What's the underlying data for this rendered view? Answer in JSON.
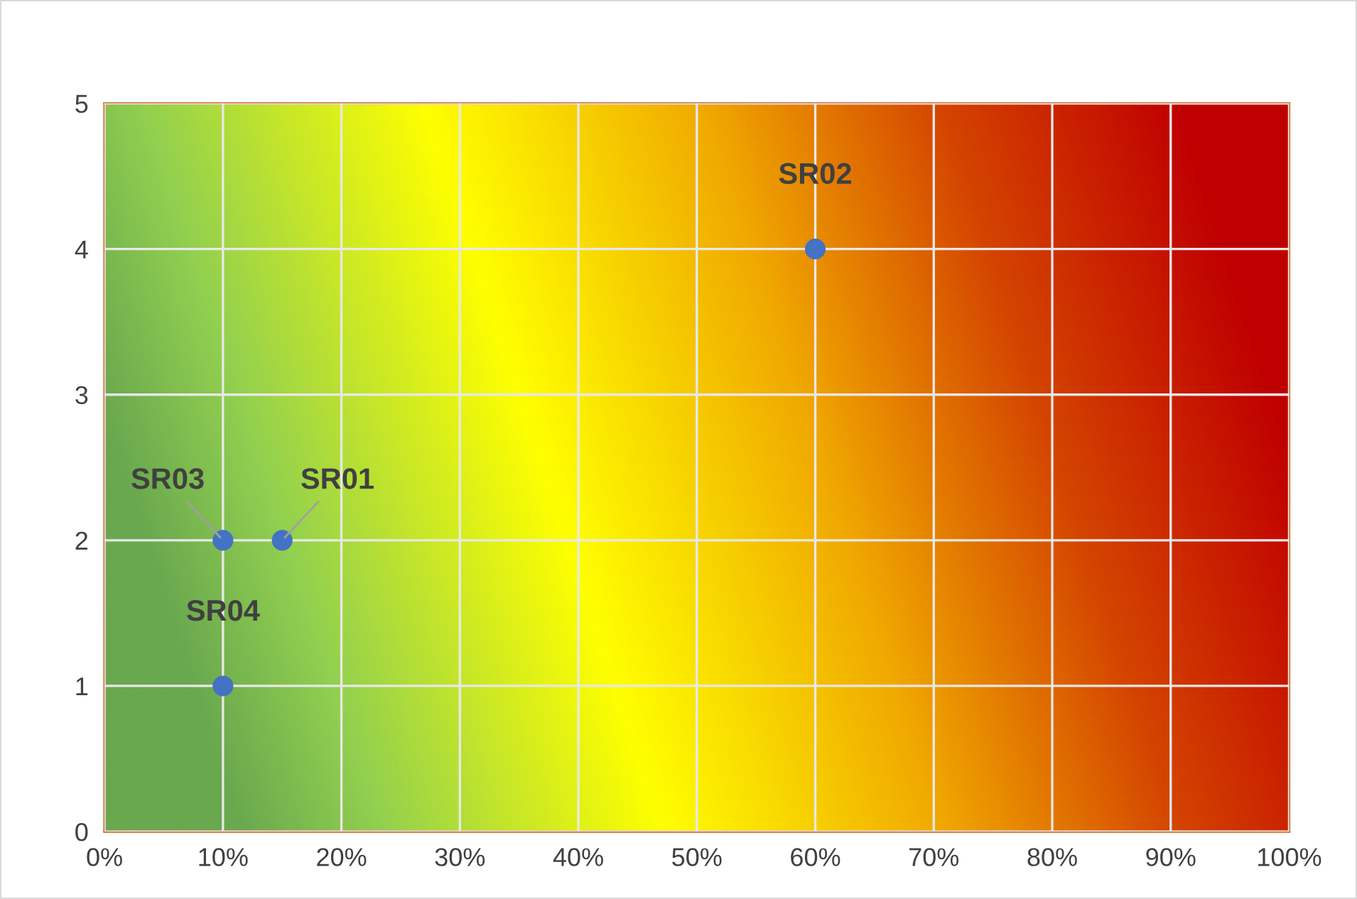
{
  "chart_data": {
    "type": "scatter",
    "x": [
      15,
      60,
      10,
      10
    ],
    "values": [
      2,
      4,
      2,
      1
    ],
    "color": "#4472c4",
    "marker": "circle",
    "xlim": [
      0,
      100
    ],
    "xticks": [
      {
        "value": 0,
        "label": "0%"
      },
      {
        "value": 10,
        "label": "10%"
      },
      {
        "value": 20,
        "label": "20%"
      },
      {
        "value": 30,
        "label": "30%"
      },
      {
        "value": 40,
        "label": "40%"
      },
      {
        "value": 50,
        "label": "50%"
      },
      {
        "value": 60,
        "label": "60%"
      },
      {
        "value": 70,
        "label": "70%"
      },
      {
        "value": 80,
        "label": "80%"
      },
      {
        "value": 90,
        "label": "90%"
      },
      {
        "value": 100,
        "label": "100%"
      }
    ],
    "ylim": [
      0,
      5
    ],
    "yticks": [
      0,
      1,
      2,
      3,
      4,
      5
    ],
    "grid": true,
    "annotations": [
      {
        "text": "SR01",
        "x": 15,
        "y": 2
      },
      {
        "text": "SR02",
        "x": 60,
        "y": 4
      },
      {
        "text": "SR03",
        "x": 10,
        "y": 2
      },
      {
        "text": "SR04",
        "x": 10,
        "y": 1
      }
    ]
  }
}
